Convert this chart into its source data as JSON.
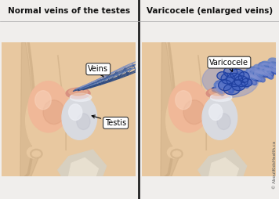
{
  "title_left": "Normal veins of the testes",
  "title_right": "Varicocele (enlarged veins)",
  "label_veins": "Veins",
  "label_testis": "Testis",
  "label_varicocele": "Varicocele",
  "copyright": "© AboutKidsHealth.ca",
  "bg_skin": "#e8c8a0",
  "bg_light": "#f0d8b8",
  "skin_mid": "#d4a878",
  "skin_dark": "#c09060",
  "skin_shadow": "#c8a880",
  "header_bg": "#f0eeec",
  "pink_tissue": "#d89080",
  "pink_light": "#e8b090",
  "white_tissue": "#d8dae0",
  "white_light": "#eceef4",
  "vein_dark": "#2a4880",
  "vein_mid": "#4060a0",
  "vein_light": "#8090c0",
  "vein_fill": "#6080b8",
  "varico_dark": "#2040a0",
  "varico_mid": "#4060c0",
  "varico_light": "#8090d0",
  "varico_fill": "#6080c8",
  "label_bg": "#ffffff",
  "label_border": "#333333",
  "divider": "#222222"
}
